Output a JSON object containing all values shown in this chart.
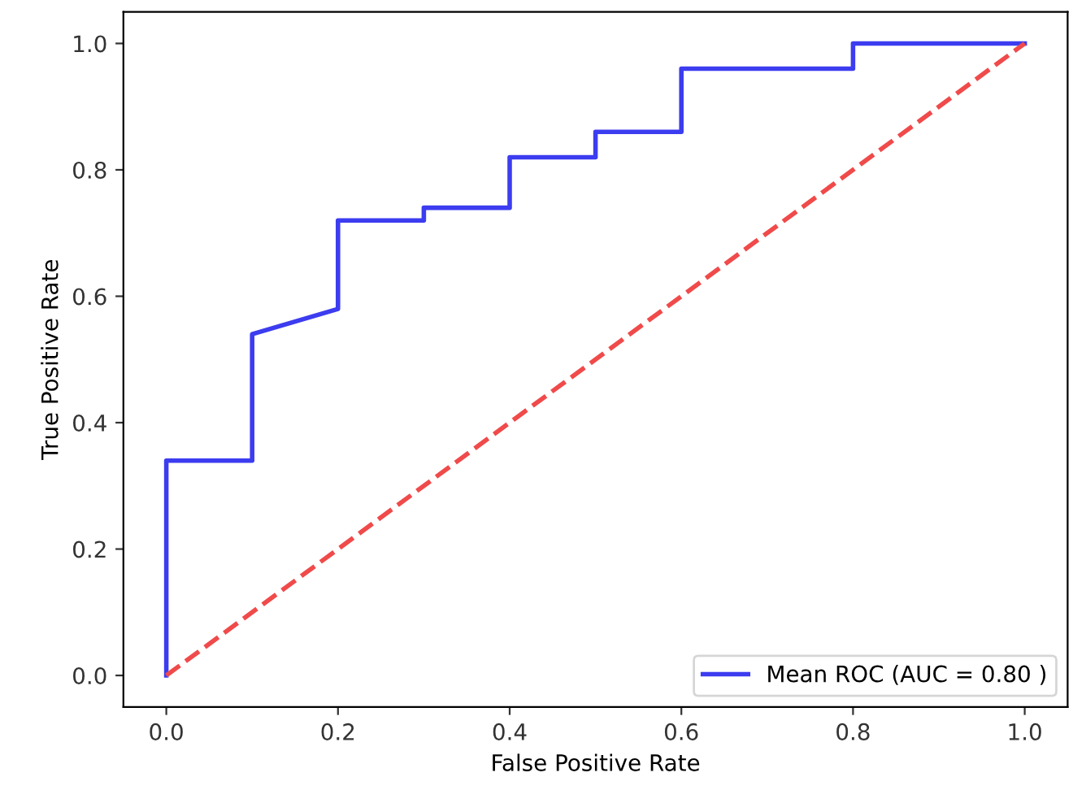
{
  "chart_data": {
    "type": "line",
    "xlabel": "False Positive Rate",
    "ylabel": "True Positive Rate",
    "xlim": [
      -0.05,
      1.05
    ],
    "ylim": [
      -0.05,
      1.05
    ],
    "xticks": [
      {
        "value": 0,
        "label": "0.0"
      },
      0.2,
      0.4,
      0.6,
      0.8,
      {
        "value": 1,
        "label": "1.0"
      }
    ],
    "yticks": [
      {
        "value": 0,
        "label": "0.0"
      },
      0.2,
      0.4,
      0.6,
      0.8,
      {
        "value": 1,
        "label": "1.0"
      }
    ],
    "grid": false,
    "legend": "bottom right",
    "marker": "none",
    "series": [
      {
        "name": "Mean ROC (AUC = 0.80 )",
        "color": "#3c3cf0",
        "line_style": "solid",
        "x": [
          0,
          0,
          0.1,
          0.1,
          0.2,
          0.2,
          0.3,
          0.3,
          0.4,
          0.4,
          0.5,
          0.5,
          0.6,
          0.6,
          0.8,
          0.8,
          1.0
        ],
        "values": [
          0,
          0.34,
          0.34,
          0.54,
          0.58,
          0.72,
          0.72,
          0.74,
          0.74,
          0.82,
          0.82,
          0.86,
          0.86,
          0.96,
          0.96,
          1.0,
          1.0
        ]
      },
      {
        "color": "#f04a4a",
        "line_style": "dashed",
        "x": [
          0,
          1
        ],
        "values": [
          0,
          1
        ]
      }
    ]
  }
}
